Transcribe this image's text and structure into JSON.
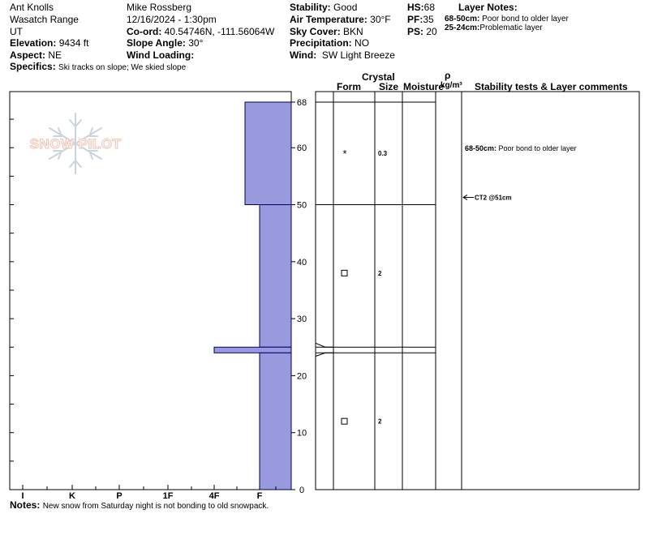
{
  "header": {
    "location": "Ant Knolls",
    "range": "Wasatch Range",
    "state": "UT",
    "elevation_label": "Elevation:",
    "elevation_value": "9434 ft",
    "aspect_label": "Aspect:",
    "aspect_value": "NE",
    "specifics_label": "Specifics:",
    "specifics_value": "Ski tracks on slope; We skied slope",
    "observer": "Mike Rossberg",
    "datetime": "12/16/2024 - 1:30pm",
    "coord_label": "Co-ord:",
    "coord_value": "40.54746N, -111.56064W",
    "slope_label": "Slope Angle:",
    "slope_value": "30°",
    "wind_loading_label": "Wind Loading:",
    "wind_loading_value": "",
    "stability_label": "Stability:",
    "stability_value": "Good",
    "air_temp_label": "Air Temperature:",
    "air_temp_value": "30°F",
    "sky_label": "Sky Cover:",
    "sky_value": "BKN",
    "precip_label": "Precipitation:",
    "precip_value": "NO",
    "wind_label": "Wind:",
    "wind_value": "SW Light Breeze",
    "hs_label": "HS:",
    "hs_value": "68",
    "pf_label": "PF:",
    "pf_value": "35",
    "ps_label": "PS:",
    "ps_value": "20",
    "layer_notes_title": "Layer Notes:",
    "layer_notes": [
      {
        "range": "68-50cm:",
        "text": " Poor bond to older layer"
      },
      {
        "range": "25-24cm:",
        "text": "Problematic layer"
      }
    ]
  },
  "logo": {
    "text": "SNOW PILOT"
  },
  "columns": {
    "crystal": "Crystal",
    "form": "Form",
    "size": "Size",
    "moisture": "Moisture",
    "rho": "ρ",
    "density_unit": "kg/m³",
    "comments": "Stability tests & Layer comments"
  },
  "notes": {
    "label": "Notes:",
    "text": "New snow from Saturday night is not bonding to old snowpack."
  },
  "chart_data": {
    "type": "snow_profile",
    "total_depth_cm": 68,
    "depth_axis": {
      "ticks": [
        0,
        10,
        20,
        30,
        40,
        50,
        60,
        68
      ]
    },
    "hardness_axis": {
      "labels": [
        "I",
        "K",
        "P",
        "1F",
        "4F",
        "F"
      ]
    },
    "layers": [
      {
        "top": 68,
        "bottom": 50,
        "hardness": "4F-F",
        "form": "*",
        "size": "0.3"
      },
      {
        "top": 50,
        "bottom": 25,
        "hardness": "F",
        "form": "□",
        "size": "2"
      },
      {
        "top": 25,
        "bottom": 24,
        "hardness": "4F",
        "form": "",
        "size": ""
      },
      {
        "top": 24,
        "bottom": 0,
        "hardness": "F",
        "form": "□",
        "size": "2"
      }
    ],
    "layer_comments": [
      {
        "depth": 60,
        "range": "68-50cm:",
        "text": " Poor bond to older layer"
      }
    ],
    "stability_tests": [
      {
        "depth": 51,
        "label": "CT2 @51cm"
      }
    ],
    "colors": {
      "layer_fill": "#9999dd",
      "layer_stroke": "#000066"
    }
  }
}
